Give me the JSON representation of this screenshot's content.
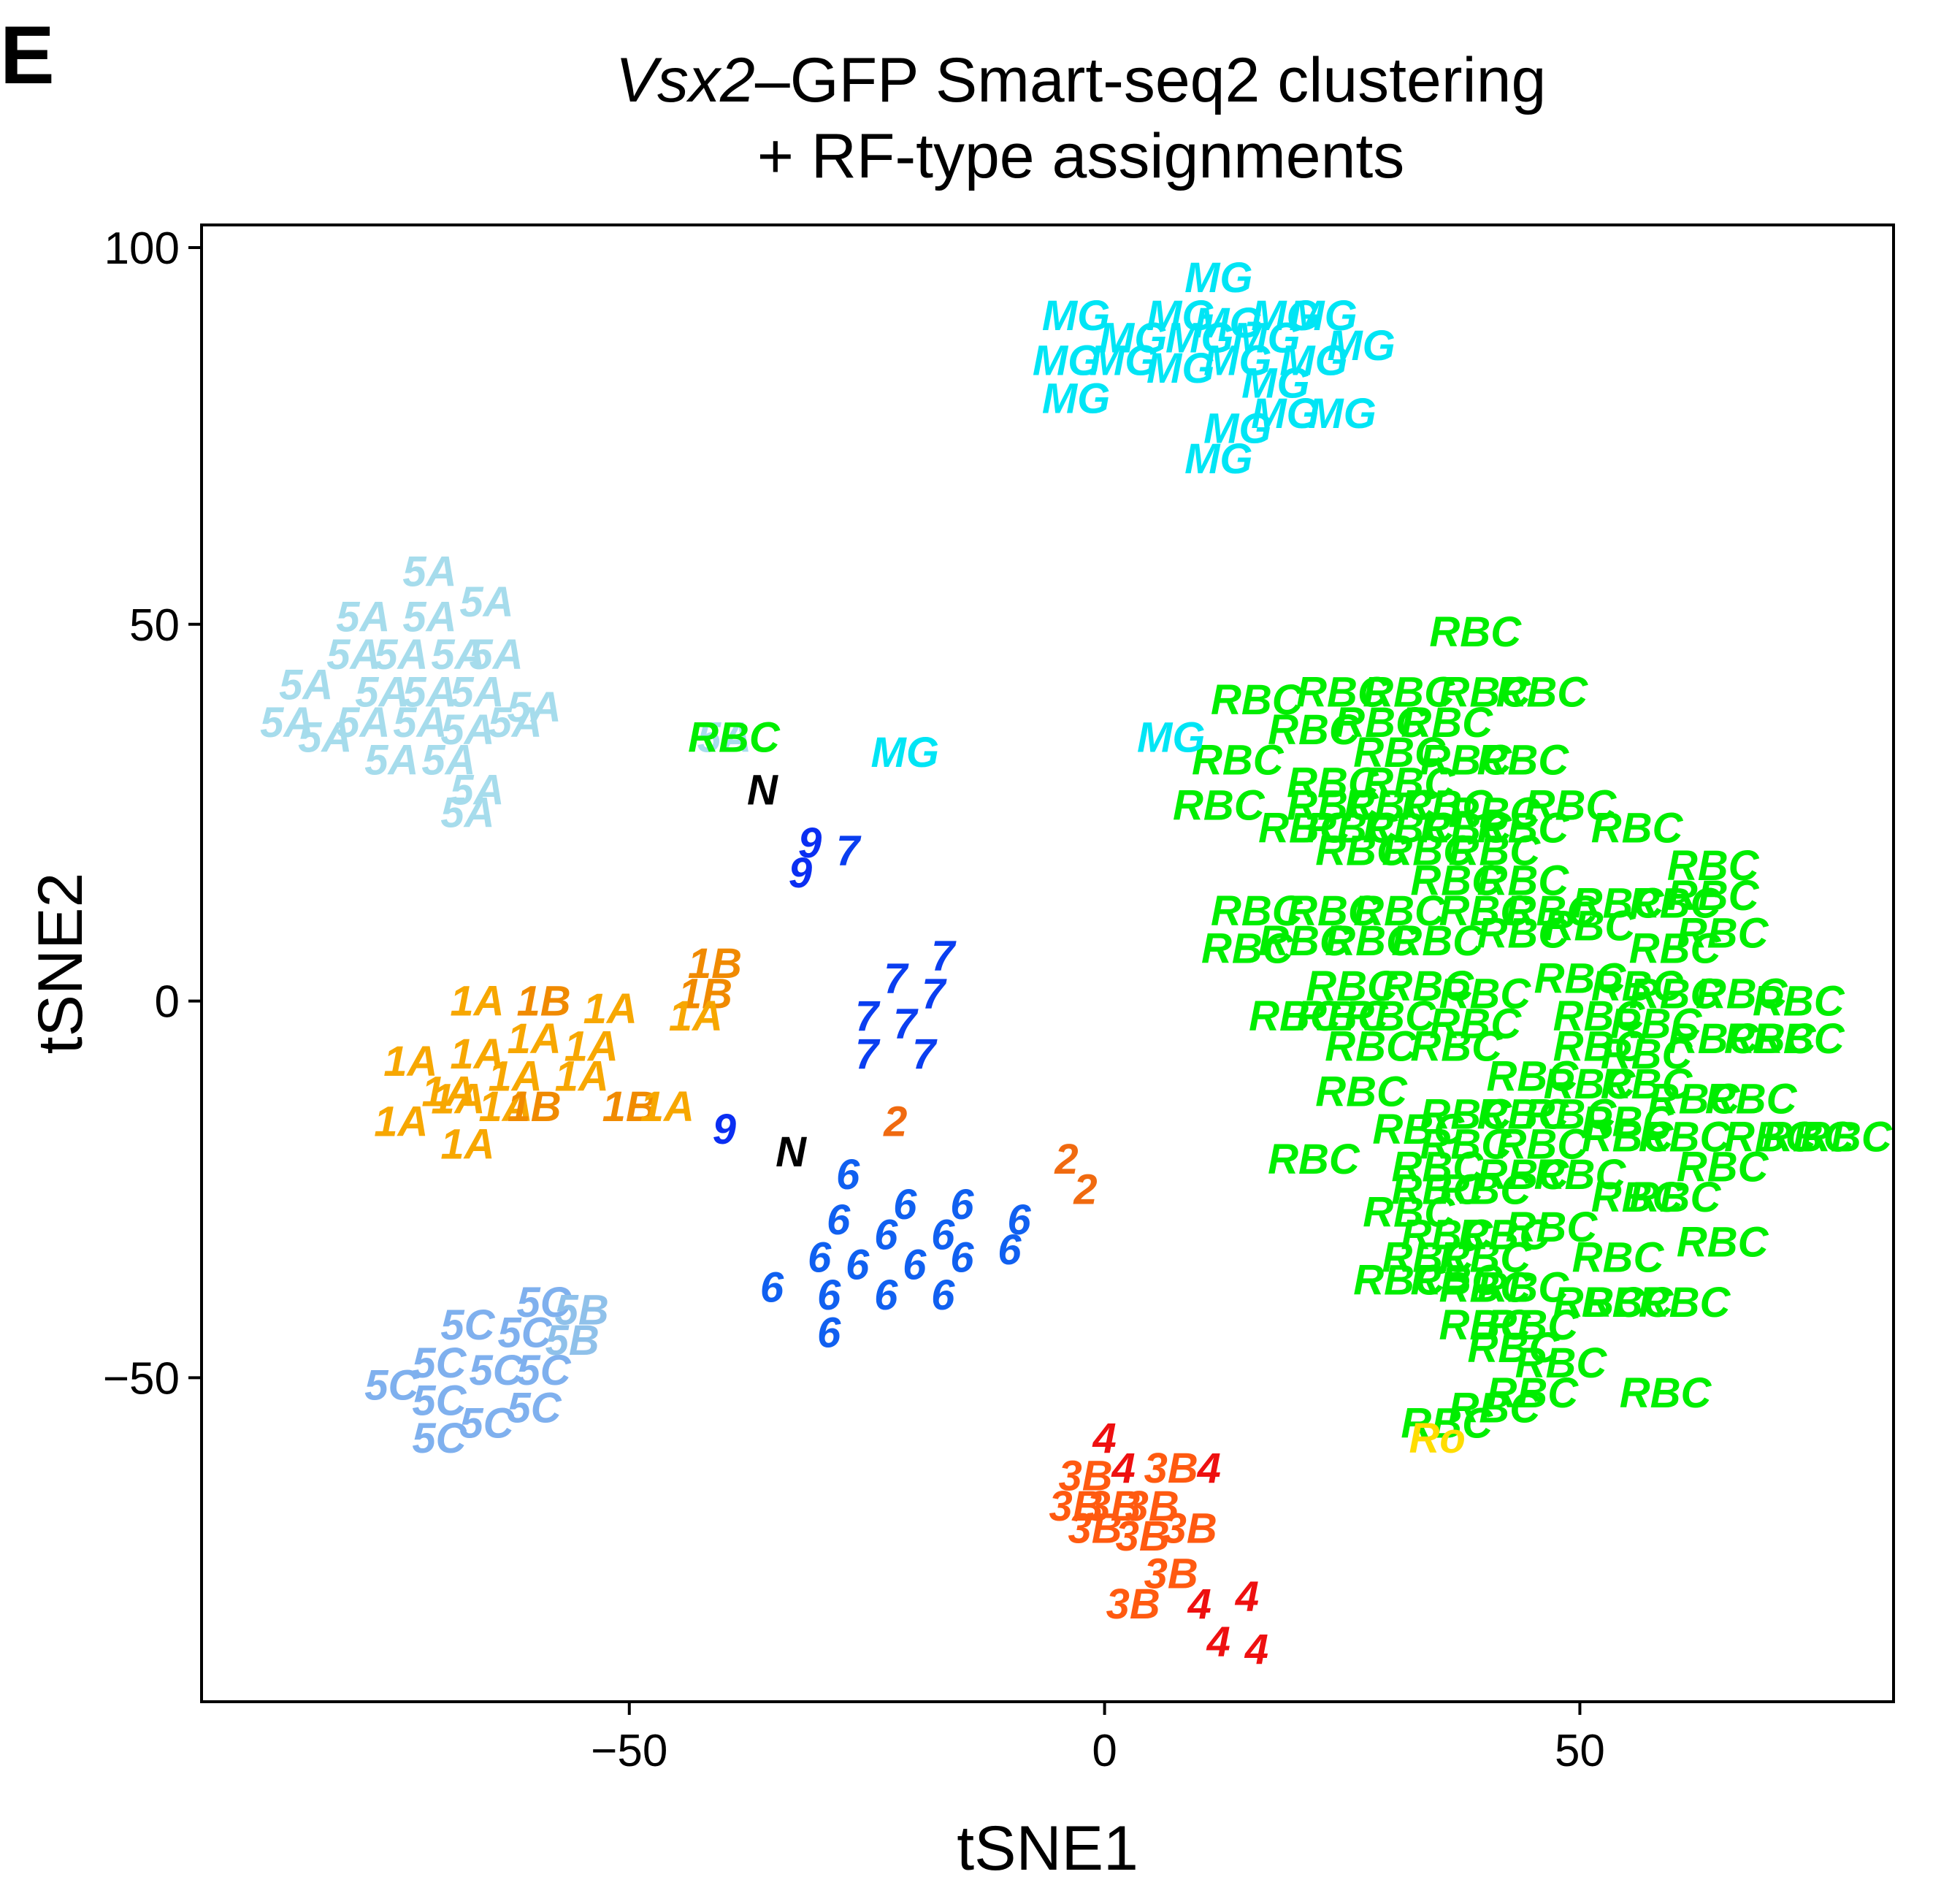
{
  "panel_label": "E",
  "title": {
    "line1_italic": "Vsx2",
    "line1_rest": "–GFP Smart-seq2 clustering",
    "line2": "+ RF-type assignments"
  },
  "colors": {
    "RBC": "#00ee00",
    "MG": "#00e5f5",
    "5A": "#a6dcec",
    "5B": "#8fc1ea",
    "5C": "#7fb0ee",
    "1A": "#f7a700",
    "1B": "#f08a00",
    "9": "#0a2ef2",
    "7": "#0a3ef0",
    "6": "#1060f0",
    "2": "#f06a10",
    "3B": "#ff5a10",
    "4": "#ee1010",
    "N": "#000000",
    "Ro": "#ffdd00"
  },
  "chart_data": {
    "type": "scatter",
    "title": "Vsx2–GFP Smart-seq2 clustering + RF-type assignments",
    "xlabel": "tSNE1",
    "ylabel": "tSNE2",
    "xlim": [
      -95,
      83
    ],
    "ylim": [
      -93,
      103
    ],
    "xticks": [
      -50,
      0,
      50
    ],
    "xtick_labels": [
      "−50",
      "0",
      "50"
    ],
    "yticks": [
      -50,
      0,
      50,
      100
    ],
    "ytick_labels": [
      "−50",
      "0",
      "50",
      "100"
    ],
    "grid": false,
    "legend": "none",
    "marker": "text label",
    "points": [
      {
        "label": "MG",
        "x": 12,
        "y": 96
      },
      {
        "label": "MG",
        "x": -3,
        "y": 91
      },
      {
        "label": "MG",
        "x": 8,
        "y": 91
      },
      {
        "label": "MG",
        "x": 13,
        "y": 90
      },
      {
        "label": "MG",
        "x": 19,
        "y": 91
      },
      {
        "label": "MG",
        "x": 23,
        "y": 91
      },
      {
        "label": "MG",
        "x": 3,
        "y": 88
      },
      {
        "label": "MG",
        "x": 10,
        "y": 88
      },
      {
        "label": "MG",
        "x": 17,
        "y": 88
      },
      {
        "label": "MG",
        "x": 27,
        "y": 87
      },
      {
        "label": "MG",
        "x": -4,
        "y": 85
      },
      {
        "label": "MG",
        "x": 2,
        "y": 85
      },
      {
        "label": "MG",
        "x": 8,
        "y": 84
      },
      {
        "label": "MG",
        "x": 14,
        "y": 85
      },
      {
        "label": "MG",
        "x": 22,
        "y": 85
      },
      {
        "label": "MG",
        "x": 18,
        "y": 82
      },
      {
        "label": "MG",
        "x": -3,
        "y": 80
      },
      {
        "label": "MG",
        "x": 19,
        "y": 78
      },
      {
        "label": "MG",
        "x": 25,
        "y": 78
      },
      {
        "label": "MG",
        "x": 14,
        "y": 76
      },
      {
        "label": "MG",
        "x": 12,
        "y": 72
      },
      {
        "label": "5A",
        "x": -71,
        "y": 57
      },
      {
        "label": "5A",
        "x": -65,
        "y": 53
      },
      {
        "label": "5A",
        "x": -78,
        "y": 51
      },
      {
        "label": "5A",
        "x": -71,
        "y": 51
      },
      {
        "label": "5A",
        "x": -79,
        "y": 46
      },
      {
        "label": "5A",
        "x": -74,
        "y": 46
      },
      {
        "label": "5A",
        "x": -68,
        "y": 46
      },
      {
        "label": "5A",
        "x": -64,
        "y": 46
      },
      {
        "label": "5A",
        "x": -84,
        "y": 42
      },
      {
        "label": "5A",
        "x": -76,
        "y": 41
      },
      {
        "label": "5A",
        "x": -71,
        "y": 41
      },
      {
        "label": "5A",
        "x": -66,
        "y": 41
      },
      {
        "label": "5A",
        "x": -86,
        "y": 37
      },
      {
        "label": "5A",
        "x": -78,
        "y": 37
      },
      {
        "label": "5A",
        "x": -72,
        "y": 37
      },
      {
        "label": "5A",
        "x": -62,
        "y": 37
      },
      {
        "label": "5A",
        "x": -67,
        "y": 36
      },
      {
        "label": "5A",
        "x": -60,
        "y": 39
      },
      {
        "label": "5A",
        "x": -82,
        "y": 35
      },
      {
        "label": "5A",
        "x": -75,
        "y": 32
      },
      {
        "label": "5A",
        "x": -69,
        "y": 32
      },
      {
        "label": "5A",
        "x": -66,
        "y": 28
      },
      {
        "label": "5A",
        "x": -67,
        "y": 25
      },
      {
        "label": "5A",
        "x": -40,
        "y": 35
      },
      {
        "label": "RBC",
        "x": -39,
        "y": 35
      },
      {
        "label": "RBC",
        "x": 39,
        "y": 49
      },
      {
        "label": "RBC",
        "x": 16,
        "y": 40
      },
      {
        "label": "RBC",
        "x": 25,
        "y": 41
      },
      {
        "label": "RBC",
        "x": 32,
        "y": 41
      },
      {
        "label": "RBC",
        "x": 40,
        "y": 41
      },
      {
        "label": "RBC",
        "x": 46,
        "y": 41
      },
      {
        "label": "RBC",
        "x": 22,
        "y": 36
      },
      {
        "label": "RBC",
        "x": 29,
        "y": 37
      },
      {
        "label": "RBC",
        "x": 36,
        "y": 37
      },
      {
        "label": "RBC",
        "x": 14,
        "y": 32
      },
      {
        "label": "RBC",
        "x": 31,
        "y": 33
      },
      {
        "label": "RBC",
        "x": 38,
        "y": 32
      },
      {
        "label": "RBC",
        "x": 44,
        "y": 32
      },
      {
        "label": "RBC",
        "x": 24,
        "y": 29
      },
      {
        "label": "RBC",
        "x": 32,
        "y": 29
      },
      {
        "label": "RBC",
        "x": 12,
        "y": 26
      },
      {
        "label": "RBC",
        "x": 24,
        "y": 26
      },
      {
        "label": "RBC",
        "x": 30,
        "y": 26
      },
      {
        "label": "RBC",
        "x": 36,
        "y": 26
      },
      {
        "label": "RBC",
        "x": 41,
        "y": 25
      },
      {
        "label": "RBC",
        "x": 49,
        "y": 26
      },
      {
        "label": "RBC",
        "x": 21,
        "y": 23
      },
      {
        "label": "RBC",
        "x": 26,
        "y": 23
      },
      {
        "label": "RBC",
        "x": 32,
        "y": 23
      },
      {
        "label": "RBC",
        "x": 38,
        "y": 23
      },
      {
        "label": "RBC",
        "x": 44,
        "y": 23
      },
      {
        "label": "RBC",
        "x": 56,
        "y": 23
      },
      {
        "label": "RBC",
        "x": 27,
        "y": 20
      },
      {
        "label": "RBC",
        "x": 34,
        "y": 20
      },
      {
        "label": "RBC",
        "x": 41,
        "y": 20
      },
      {
        "label": "RBC",
        "x": 64,
        "y": 18
      },
      {
        "label": "RBC",
        "x": 37,
        "y": 16
      },
      {
        "label": "RBC",
        "x": 44,
        "y": 16
      },
      {
        "label": "RBC",
        "x": 16,
        "y": 12
      },
      {
        "label": "RBC",
        "x": 24,
        "y": 12
      },
      {
        "label": "RBC",
        "x": 31,
        "y": 12
      },
      {
        "label": "RBC",
        "x": 40,
        "y": 12
      },
      {
        "label": "RBC",
        "x": 47,
        "y": 12
      },
      {
        "label": "RBC",
        "x": 54,
        "y": 13
      },
      {
        "label": "RBC",
        "x": 60,
        "y": 13
      },
      {
        "label": "RBC",
        "x": 64,
        "y": 14
      },
      {
        "label": "RBC",
        "x": 21,
        "y": 8
      },
      {
        "label": "RBC",
        "x": 28,
        "y": 8
      },
      {
        "label": "RBC",
        "x": 35,
        "y": 8
      },
      {
        "label": "RBC",
        "x": 44,
        "y": 9
      },
      {
        "label": "RBC",
        "x": 51,
        "y": 10
      },
      {
        "label": "RBC",
        "x": 65,
        "y": 9
      },
      {
        "label": "RBC",
        "x": 15,
        "y": 7
      },
      {
        "label": "RBC",
        "x": 60,
        "y": 7
      },
      {
        "label": "RBC",
        "x": 26,
        "y": 2
      },
      {
        "label": "RBC",
        "x": 34,
        "y": 2
      },
      {
        "label": "RBC",
        "x": 40,
        "y": 1
      },
      {
        "label": "RBC",
        "x": 50,
        "y": 3
      },
      {
        "label": "RBC",
        "x": 56,
        "y": 2
      },
      {
        "label": "RBC",
        "x": 60,
        "y": 1
      },
      {
        "label": "RBC",
        "x": 67,
        "y": 1
      },
      {
        "label": "RBC",
        "x": 73,
        "y": 0
      },
      {
        "label": "RBC",
        "x": 20,
        "y": -2
      },
      {
        "label": "RBC",
        "x": 25,
        "y": -2
      },
      {
        "label": "RBC",
        "x": 30,
        "y": -2
      },
      {
        "label": "RBC",
        "x": 39,
        "y": -3
      },
      {
        "label": "RBC",
        "x": 52,
        "y": -2
      },
      {
        "label": "RBC",
        "x": 58,
        "y": -3
      },
      {
        "label": "RBC",
        "x": 64,
        "y": -5
      },
      {
        "label": "RBC",
        "x": 70,
        "y": -5
      },
      {
        "label": "RBC",
        "x": 73,
        "y": -5
      },
      {
        "label": "RBC",
        "x": 28,
        "y": -6
      },
      {
        "label": "RBC",
        "x": 37,
        "y": -6
      },
      {
        "label": "RBC",
        "x": 52,
        "y": -6
      },
      {
        "label": "RBC",
        "x": 57,
        "y": -7
      },
      {
        "label": "RBC",
        "x": 45,
        "y": -10
      },
      {
        "label": "RBC",
        "x": 51,
        "y": -11
      },
      {
        "label": "RBC",
        "x": 57,
        "y": -11
      },
      {
        "label": "RBC",
        "x": 27,
        "y": -12
      },
      {
        "label": "RBC",
        "x": 62,
        "y": -13
      },
      {
        "label": "RBC",
        "x": 68,
        "y": -13
      },
      {
        "label": "RBC",
        "x": 38,
        "y": -15
      },
      {
        "label": "RBC",
        "x": 44,
        "y": -15
      },
      {
        "label": "RBC",
        "x": 49,
        "y": -15
      },
      {
        "label": "RBC",
        "x": 55,
        "y": -16
      },
      {
        "label": "RBC",
        "x": 33,
        "y": -17
      },
      {
        "label": "RBC",
        "x": 38,
        "y": -19
      },
      {
        "label": "RBC",
        "x": 46,
        "y": -19
      },
      {
        "label": "RBC",
        "x": 55,
        "y": -18
      },
      {
        "label": "RBC",
        "x": 61,
        "y": -18
      },
      {
        "label": "RBC",
        "x": 70,
        "y": -18
      },
      {
        "label": "RBC",
        "x": 74,
        "y": -18
      },
      {
        "label": "RBC",
        "x": 78,
        "y": -18
      },
      {
        "label": "RBC",
        "x": 22,
        "y": -21
      },
      {
        "label": "RBC",
        "x": 35,
        "y": -22
      },
      {
        "label": "RBC",
        "x": 44,
        "y": -23
      },
      {
        "label": "RBC",
        "x": 50,
        "y": -23
      },
      {
        "label": "RBC",
        "x": 65,
        "y": -22
      },
      {
        "label": "RBC",
        "x": 35,
        "y": -25
      },
      {
        "label": "RBC",
        "x": 40,
        "y": -25
      },
      {
        "label": "RBC",
        "x": 56,
        "y": -26
      },
      {
        "label": "RBC",
        "x": 60,
        "y": -26
      },
      {
        "label": "RBC",
        "x": 32,
        "y": -28
      },
      {
        "label": "RBC",
        "x": 36,
        "y": -31
      },
      {
        "label": "RBC",
        "x": 42,
        "y": -31
      },
      {
        "label": "RBC",
        "x": 47,
        "y": -30
      },
      {
        "label": "RBC",
        "x": 34,
        "y": -34
      },
      {
        "label": "RBC",
        "x": 40,
        "y": -34
      },
      {
        "label": "RBC",
        "x": 54,
        "y": -34
      },
      {
        "label": "RBC",
        "x": 65,
        "y": -32
      },
      {
        "label": "RBC",
        "x": 31,
        "y": -37
      },
      {
        "label": "RBC",
        "x": 37,
        "y": -37
      },
      {
        "label": "RBC",
        "x": 40,
        "y": -38
      },
      {
        "label": "RBC",
        "x": 44,
        "y": -38
      },
      {
        "label": "RBC",
        "x": 52,
        "y": -40
      },
      {
        "label": "RBC",
        "x": 55,
        "y": -40
      },
      {
        "label": "RBC",
        "x": 61,
        "y": -40
      },
      {
        "label": "RBC",
        "x": 40,
        "y": -43
      },
      {
        "label": "RBC",
        "x": 45,
        "y": -43
      },
      {
        "label": "RBC",
        "x": 43,
        "y": -46
      },
      {
        "label": "RBC",
        "x": 48,
        "y": -48
      },
      {
        "label": "RBC",
        "x": 45,
        "y": -52
      },
      {
        "label": "RBC",
        "x": 59,
        "y": -52
      },
      {
        "label": "RBC",
        "x": 41,
        "y": -54
      },
      {
        "label": "RBC",
        "x": 36,
        "y": -56
      },
      {
        "label": "MG",
        "x": -21,
        "y": 33
      },
      {
        "label": "MG",
        "x": 7,
        "y": 35
      },
      {
        "label": "N",
        "x": -36,
        "y": 28
      },
      {
        "label": "N",
        "x": -33,
        "y": -20
      },
      {
        "label": "9",
        "x": -31,
        "y": 21
      },
      {
        "label": "9",
        "x": -32,
        "y": 17
      },
      {
        "label": "9",
        "x": -40,
        "y": -17
      },
      {
        "label": "7",
        "x": -27,
        "y": 20
      },
      {
        "label": "7",
        "x": -17,
        "y": 6
      },
      {
        "label": "7",
        "x": -22,
        "y": 3
      },
      {
        "label": "7",
        "x": -18,
        "y": 1
      },
      {
        "label": "7",
        "x": -25,
        "y": -2
      },
      {
        "label": "7",
        "x": -21,
        "y": -3
      },
      {
        "label": "7",
        "x": -25,
        "y": -7
      },
      {
        "label": "7",
        "x": -19,
        "y": -7
      },
      {
        "label": "1B",
        "x": -41,
        "y": 5
      },
      {
        "label": "1B",
        "x": -42,
        "y": 1
      },
      {
        "label": "1A",
        "x": -43,
        "y": -2
      },
      {
        "label": "1A",
        "x": -66,
        "y": 0
      },
      {
        "label": "1B",
        "x": -59,
        "y": 0
      },
      {
        "label": "1A",
        "x": -52,
        "y": -1
      },
      {
        "label": "1A",
        "x": -73,
        "y": -8
      },
      {
        "label": "1A",
        "x": -66,
        "y": -7
      },
      {
        "label": "1A",
        "x": -60,
        "y": -5
      },
      {
        "label": "1A",
        "x": -54,
        "y": -6
      },
      {
        "label": "1A",
        "x": -69,
        "y": -12
      },
      {
        "label": "1A",
        "x": -62,
        "y": -10
      },
      {
        "label": "1A",
        "x": -55,
        "y": -10
      },
      {
        "label": "1A",
        "x": -68,
        "y": -13
      },
      {
        "label": "1A",
        "x": -74,
        "y": -16
      },
      {
        "label": "1A",
        "x": -63,
        "y": -14
      },
      {
        "label": "1B",
        "x": -60,
        "y": -14
      },
      {
        "label": "1B",
        "x": -50,
        "y": -14
      },
      {
        "label": "1A",
        "x": -46,
        "y": -14
      },
      {
        "label": "1A",
        "x": -67,
        "y": -19
      },
      {
        "label": "2",
        "x": -22,
        "y": -16
      },
      {
        "label": "2",
        "x": -4,
        "y": -21
      },
      {
        "label": "2",
        "x": -2,
        "y": -25
      },
      {
        "label": "6",
        "x": -27,
        "y": -23
      },
      {
        "label": "6",
        "x": -21,
        "y": -27
      },
      {
        "label": "6",
        "x": -15,
        "y": -27
      },
      {
        "label": "6",
        "x": -9,
        "y": -29
      },
      {
        "label": "6",
        "x": -28,
        "y": -29
      },
      {
        "label": "6",
        "x": -23,
        "y": -31
      },
      {
        "label": "6",
        "x": -17,
        "y": -31
      },
      {
        "label": "6",
        "x": -30,
        "y": -34
      },
      {
        "label": "6",
        "x": -26,
        "y": -35
      },
      {
        "label": "6",
        "x": -20,
        "y": -35
      },
      {
        "label": "6",
        "x": -15,
        "y": -34
      },
      {
        "label": "6",
        "x": -10,
        "y": -33
      },
      {
        "label": "6",
        "x": -35,
        "y": -38
      },
      {
        "label": "6",
        "x": -29,
        "y": -39
      },
      {
        "label": "6",
        "x": -23,
        "y": -39
      },
      {
        "label": "6",
        "x": -17,
        "y": -39
      },
      {
        "label": "6",
        "x": -29,
        "y": -44
      },
      {
        "label": "5C",
        "x": -59,
        "y": -40
      },
      {
        "label": "5B",
        "x": -55,
        "y": -41
      },
      {
        "label": "5C",
        "x": -67,
        "y": -43
      },
      {
        "label": "5C",
        "x": -61,
        "y": -44
      },
      {
        "label": "5B",
        "x": -56,
        "y": -45
      },
      {
        "label": "5C",
        "x": -70,
        "y": -48
      },
      {
        "label": "5C",
        "x": -64,
        "y": -49
      },
      {
        "label": "5C",
        "x": -59,
        "y": -49
      },
      {
        "label": "5C",
        "x": -75,
        "y": -51
      },
      {
        "label": "5C",
        "x": -70,
        "y": -53
      },
      {
        "label": "5C",
        "x": -60,
        "y": -54
      },
      {
        "label": "5C",
        "x": -65,
        "y": -56
      },
      {
        "label": "5C",
        "x": -70,
        "y": -58
      },
      {
        "label": "4",
        "x": 0,
        "y": -58
      },
      {
        "label": "3B",
        "x": -2,
        "y": -63
      },
      {
        "label": "4",
        "x": 2,
        "y": -62
      },
      {
        "label": "3B",
        "x": 7,
        "y": -62
      },
      {
        "label": "4",
        "x": 11,
        "y": -62
      },
      {
        "label": "3B",
        "x": -3,
        "y": -67
      },
      {
        "label": "3B",
        "x": 1,
        "y": -67
      },
      {
        "label": "3B",
        "x": 5,
        "y": -67
      },
      {
        "label": "3B",
        "x": -1,
        "y": -70
      },
      {
        "label": "3B",
        "x": 4,
        "y": -71
      },
      {
        "label": "3B",
        "x": 9,
        "y": -70
      },
      {
        "label": "3B",
        "x": 7,
        "y": -76
      },
      {
        "label": "3B",
        "x": 3,
        "y": -80
      },
      {
        "label": "4",
        "x": 10,
        "y": -80
      },
      {
        "label": "4",
        "x": 15,
        "y": -79
      },
      {
        "label": "4",
        "x": 12,
        "y": -85
      },
      {
        "label": "4",
        "x": 16,
        "y": -86
      },
      {
        "label": "Ro",
        "x": 35,
        "y": -58
      }
    ]
  }
}
